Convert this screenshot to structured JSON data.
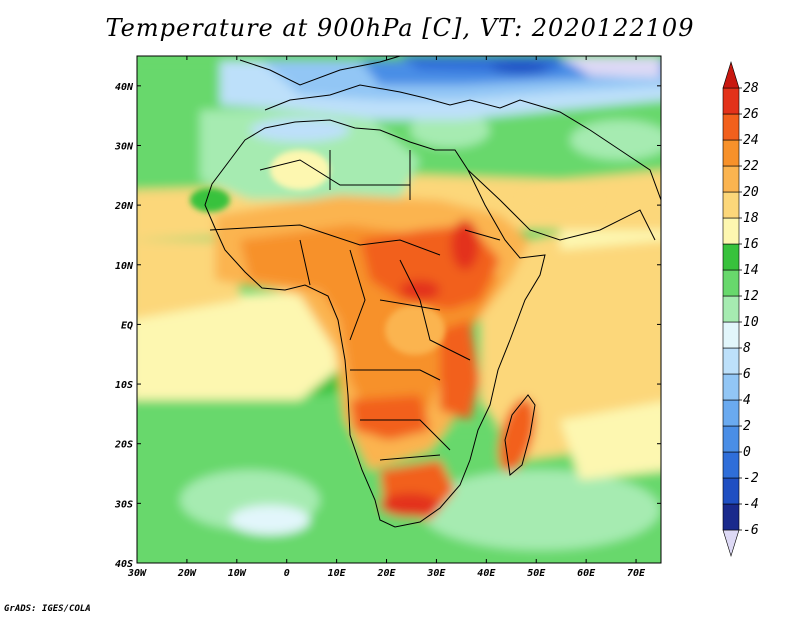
{
  "title": "Temperature at 900hPa [C], VT: 2020122109",
  "credit": "GrADS: IGES/COLA",
  "map": {
    "projection": "lat-lon",
    "lon_range": [
      -30,
      75
    ],
    "lat_range": [
      -40,
      45
    ],
    "lat_ticks": [
      {
        "value": 40,
        "label": "40N"
      },
      {
        "value": 30,
        "label": "30N"
      },
      {
        "value": 20,
        "label": "20N"
      },
      {
        "value": 10,
        "label": "10N"
      },
      {
        "value": 0,
        "label": "EQ"
      },
      {
        "value": -10,
        "label": "10S"
      },
      {
        "value": -20,
        "label": "20S"
      },
      {
        "value": -30,
        "label": "30S"
      },
      {
        "value": -40,
        "label": "40S"
      }
    ],
    "lon_ticks": [
      {
        "value": -30,
        "label": "30W"
      },
      {
        "value": -20,
        "label": "20W"
      },
      {
        "value": -10,
        "label": "10W"
      },
      {
        "value": 0,
        "label": "0"
      },
      {
        "value": 10,
        "label": "10E"
      },
      {
        "value": 20,
        "label": "20E"
      },
      {
        "value": 30,
        "label": "30E"
      },
      {
        "value": 40,
        "label": "40E"
      },
      {
        "value": 50,
        "label": "50E"
      },
      {
        "value": 60,
        "label": "60E"
      },
      {
        "value": 70,
        "label": "70E"
      }
    ]
  },
  "colorbar": {
    "unit": "C",
    "levels": [
      -6,
      -4,
      -2,
      0,
      2,
      4,
      6,
      8,
      10,
      12,
      14,
      16,
      18,
      20,
      22,
      24,
      26,
      28
    ],
    "labels": [
      "-6",
      "-4",
      "-2",
      "0",
      "2",
      "4",
      "6",
      "8",
      "10",
      "12",
      "14",
      "16",
      "18",
      "20",
      "22",
      "24",
      "26",
      "28"
    ],
    "colors": [
      "#ddd9f5",
      "#1a2a8c",
      "#1f4fc2",
      "#2f6ed9",
      "#4a8ee6",
      "#6aaaf0",
      "#92c6f5",
      "#bde0fa",
      "#e2f6fb",
      "#a6ebb1",
      "#68d86c",
      "#38c23c",
      "#fdf7b0",
      "#fcd77a",
      "#fbb450",
      "#f7912a",
      "#f2601c",
      "#e3321a",
      "#c81810"
    ]
  }
}
